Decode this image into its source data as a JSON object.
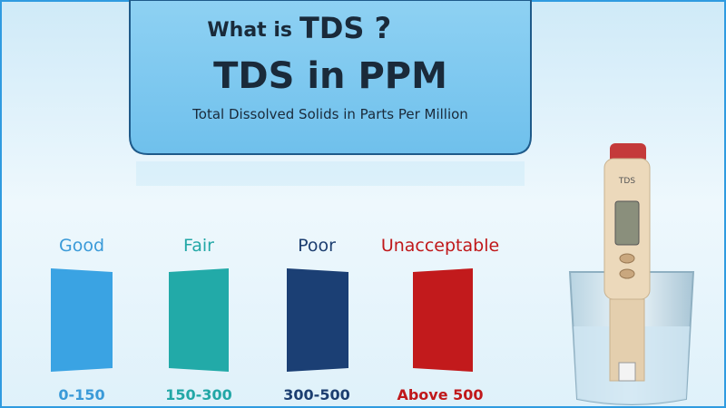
{
  "header": {
    "question_prefix": "What is",
    "question_term": "TDS ?",
    "title": "TDS in PPM",
    "subtitle": "Total Dissolved Solids in Parts Per Million"
  },
  "levels": [
    {
      "label": "Good",
      "range": "0-150"
    },
    {
      "label": "Fair",
      "range": "150-300"
    },
    {
      "label": "Poor",
      "range": "300-500"
    },
    {
      "label": "Unacceptable",
      "range": "Above 500"
    }
  ],
  "device": {
    "label": "TDS"
  }
}
